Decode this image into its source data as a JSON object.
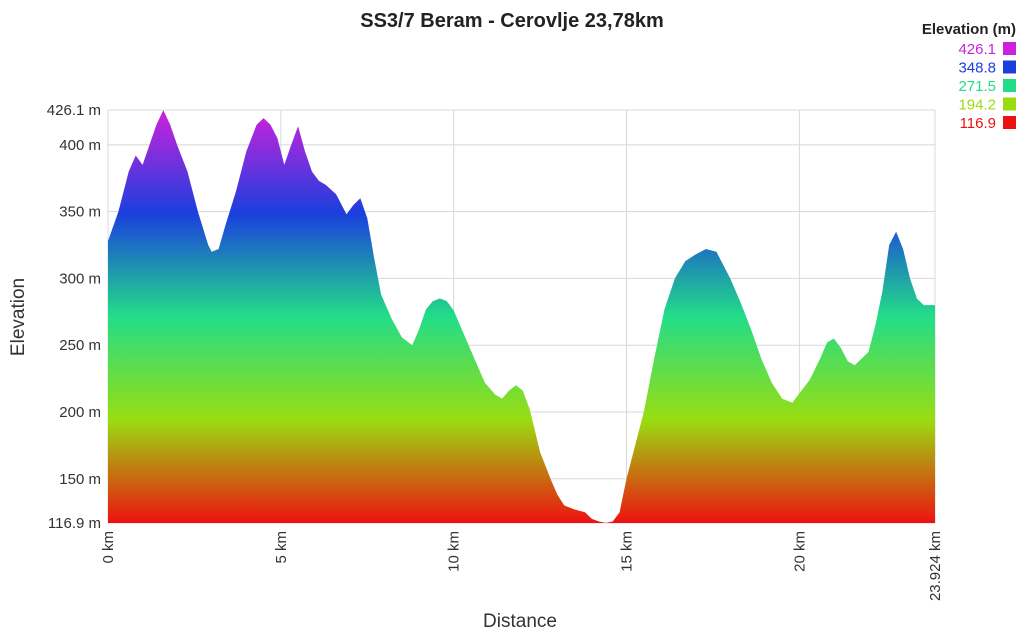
{
  "chart_data": {
    "type": "area",
    "title": "SS3/7 Beram - Cerovlje 23,78km",
    "xlabel": "Distance",
    "ylabel": "Elevation",
    "xlim": [
      0,
      23.924
    ],
    "ylim": [
      116.9,
      426.1
    ],
    "grid": true,
    "x_ticks": [
      {
        "value": 0,
        "label": "0 km"
      },
      {
        "value": 5,
        "label": "5 km"
      },
      {
        "value": 10,
        "label": "10 km"
      },
      {
        "value": 15,
        "label": "15 km"
      },
      {
        "value": 20,
        "label": "20 km"
      },
      {
        "value": 23.924,
        "label": "23.924 km"
      }
    ],
    "y_ticks": [
      {
        "value": 116.9,
        "label": "116.9 m"
      },
      {
        "value": 150,
        "label": "150 m"
      },
      {
        "value": 200,
        "label": "200 m"
      },
      {
        "value": 250,
        "label": "250 m"
      },
      {
        "value": 300,
        "label": "300 m"
      },
      {
        "value": 350,
        "label": "350 m"
      },
      {
        "value": 400,
        "label": "400 m"
      },
      {
        "value": 426.1,
        "label": "426.1 m"
      }
    ],
    "legend": {
      "title": "Elevation (m)",
      "placement": "top-right",
      "entries": [
        {
          "label": "426.1",
          "color": "#cc22dd"
        },
        {
          "label": "348.8",
          "color": "#1b3fdd"
        },
        {
          "label": "271.5",
          "color": "#22dd88"
        },
        {
          "label": "194.2",
          "color": "#99dd11"
        },
        {
          "label": "116.9",
          "color": "#ee1111"
        }
      ]
    },
    "series": [
      {
        "x": [
          0,
          0.3,
          0.6,
          0.8,
          1.0,
          1.2,
          1.4,
          1.6,
          1.8,
          2.0,
          2.3,
          2.6,
          2.9,
          3.0,
          3.2,
          3.4,
          3.7,
          4.0,
          4.3,
          4.5,
          4.7,
          4.9,
          5.1,
          5.3,
          5.5,
          5.7,
          5.9,
          6.1,
          6.3,
          6.6,
          6.9,
          7.1,
          7.3,
          7.5,
          7.7,
          7.9,
          8.2,
          8.5,
          8.8,
          9.0,
          9.2,
          9.4,
          9.6,
          9.8,
          10.0,
          10.3,
          10.6,
          10.9,
          11.2,
          11.4,
          11.6,
          11.8,
          12.0,
          12.2,
          12.5,
          12.8,
          13.0,
          13.2,
          13.5,
          13.8,
          14.0,
          14.2,
          14.4,
          14.6,
          14.8,
          15.0,
          15.2,
          15.5,
          15.8,
          16.1,
          16.4,
          16.7,
          17.0,
          17.3,
          17.6,
          17.8,
          18.0,
          18.3,
          18.6,
          18.9,
          19.2,
          19.5,
          19.8,
          20.0,
          20.3,
          20.6,
          20.8,
          21.0,
          21.2,
          21.4,
          21.6,
          21.8,
          22.0,
          22.2,
          22.4,
          22.6,
          22.8,
          23.0,
          23.2,
          23.4,
          23.6,
          23.924
        ],
        "values": [
          328,
          350,
          380,
          392,
          385,
          400,
          415,
          426,
          415,
          400,
          380,
          350,
          325,
          320,
          322,
          340,
          365,
          395,
          415,
          420,
          415,
          405,
          385,
          400,
          414,
          395,
          380,
          373,
          370,
          363,
          348,
          355,
          360,
          345,
          315,
          288,
          270,
          256,
          250,
          262,
          277,
          283,
          285,
          283,
          276,
          258,
          240,
          222,
          213,
          210,
          216,
          220,
          216,
          202,
          170,
          150,
          138,
          130,
          127,
          125,
          120,
          118,
          117,
          118,
          125,
          150,
          170,
          200,
          240,
          277,
          300,
          313,
          318,
          322,
          320,
          310,
          300,
          282,
          262,
          240,
          222,
          210,
          207,
          214,
          224,
          240,
          252,
          255,
          248,
          238,
          235,
          240,
          245,
          265,
          290,
          325,
          335,
          322,
          300,
          285,
          280,
          280
        ]
      }
    ]
  }
}
